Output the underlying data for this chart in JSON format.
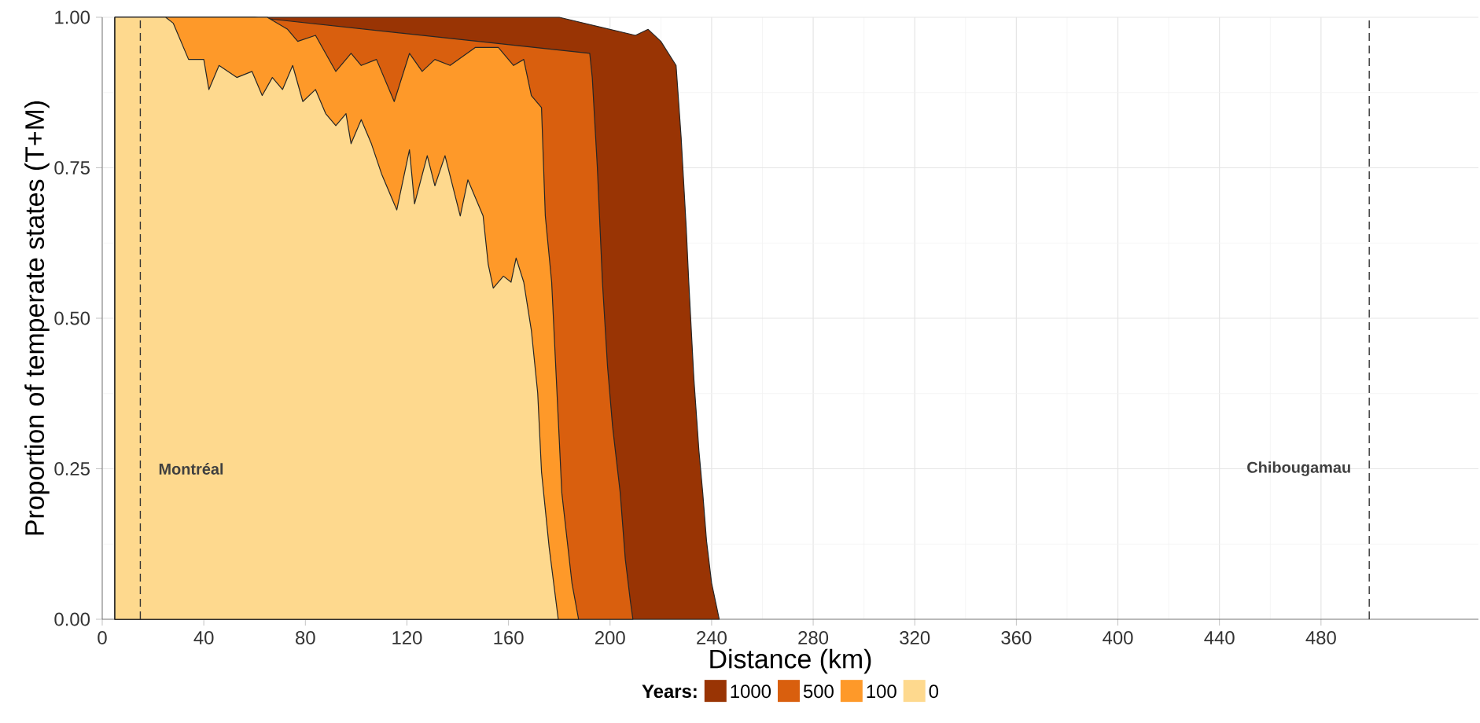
{
  "chart_data": {
    "type": "area",
    "xlabel": "Distance (km)",
    "ylabel": "Proportion of temperate states (T+M)",
    "legend_title": "Years:",
    "legend": "bottom",
    "grid": true,
    "xlim": [
      0,
      542
    ],
    "ylim": [
      0,
      1
    ],
    "xticks": [
      0,
      40,
      80,
      120,
      160,
      200,
      240,
      280,
      320,
      360,
      400,
      440,
      480
    ],
    "yticks": [
      {
        "value": 0,
        "label": "0.00"
      },
      {
        "value": 0.25,
        "label": "0.25"
      },
      {
        "value": 0.5,
        "label": "0.50"
      },
      {
        "value": 0.75,
        "label": "0.75"
      },
      {
        "value": 1,
        "label": "1.00"
      }
    ],
    "ref_lines": [
      {
        "axis": "x",
        "value": 15,
        "label": "Montréal",
        "line_style": "dashed"
      },
      {
        "axis": "x",
        "value": 499,
        "label": "Chibougamau",
        "line_style": "dashed"
      }
    ],
    "series": [
      {
        "name": "1000",
        "color": "#993404",
        "x": [
          5,
          180,
          210,
          215,
          220,
          223,
          226,
          228,
          230,
          231,
          233,
          235,
          236.5,
          238,
          240,
          242,
          243
        ],
        "values": [
          1,
          1,
          0.97,
          0.98,
          0.96,
          0.94,
          0.92,
          0.8,
          0.65,
          0.56,
          0.4,
          0.28,
          0.21,
          0.13,
          0.06,
          0.02,
          0
        ]
      },
      {
        "name": "500",
        "color": "#d95f0e",
        "x": [
          5,
          60,
          192,
          193,
          195,
          197,
          199,
          201,
          204,
          206,
          208,
          209
        ],
        "values": [
          1,
          1,
          0.94,
          0.9,
          0.75,
          0.56,
          0.42,
          0.32,
          0.21,
          0.1,
          0.03,
          0
        ]
      },
      {
        "name": "100",
        "color": "#fe9929",
        "x": [
          5,
          65,
          73,
          77,
          84,
          92,
          98,
          102,
          108,
          115,
          121,
          126,
          131,
          137,
          147,
          156,
          162,
          166,
          169,
          173,
          174.5,
          177,
          181,
          185,
          187.6
        ],
        "values": [
          1,
          1,
          0.98,
          0.96,
          0.97,
          0.91,
          0.94,
          0.92,
          0.93,
          0.86,
          0.94,
          0.91,
          0.93,
          0.92,
          0.95,
          0.95,
          0.92,
          0.93,
          0.87,
          0.85,
          0.67,
          0.56,
          0.21,
          0.06,
          0
        ]
      },
      {
        "name": "0",
        "color": "#fed98e",
        "x": [
          5,
          25,
          28,
          34,
          40,
          42,
          46,
          53,
          59,
          63,
          67,
          71,
          75,
          79,
          84,
          88,
          92,
          96,
          98,
          102,
          106,
          110,
          116,
          121,
          123,
          128,
          131,
          135,
          141,
          144,
          150,
          152,
          154,
          158,
          161,
          163,
          166,
          169,
          171.5,
          173,
          176,
          179.6
        ],
        "values": [
          1,
          1,
          0.99,
          0.93,
          0.93,
          0.88,
          0.92,
          0.9,
          0.91,
          0.87,
          0.9,
          0.88,
          0.92,
          0.86,
          0.88,
          0.84,
          0.82,
          0.84,
          0.79,
          0.83,
          0.79,
          0.74,
          0.68,
          0.78,
          0.69,
          0.77,
          0.72,
          0.77,
          0.67,
          0.73,
          0.67,
          0.59,
          0.55,
          0.57,
          0.56,
          0.6,
          0.56,
          0.48,
          0.376,
          0.245,
          0.12,
          0
        ]
      }
    ]
  }
}
